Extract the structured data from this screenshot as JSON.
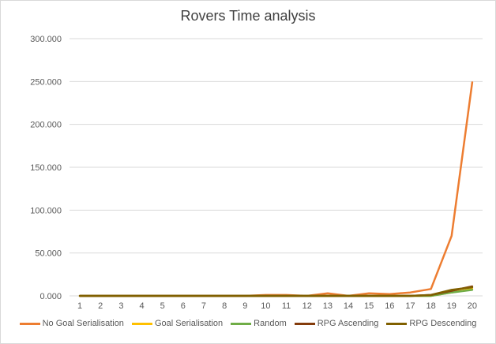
{
  "chart_data": {
    "type": "line",
    "title": "Rovers Time analysis",
    "xlabel": "",
    "ylabel": "",
    "categories": [
      "1",
      "2",
      "3",
      "4",
      "5",
      "6",
      "7",
      "8",
      "9",
      "10",
      "11",
      "12",
      "13",
      "14",
      "15",
      "16",
      "17",
      "18",
      "19",
      "20"
    ],
    "y_ticks": [
      "0.000",
      "50.000",
      "100.000",
      "150.000",
      "200.000",
      "250.000",
      "300.000"
    ],
    "ylim": [
      0,
      300000
    ],
    "grid": true,
    "legend_position": "bottom",
    "series": [
      {
        "name": "No Goal Serialisation",
        "color": "#ED7D31",
        "values": [
          0,
          0,
          0,
          0,
          0,
          0,
          0,
          0,
          0,
          1000,
          1000,
          0,
          3000,
          0,
          3000,
          2000,
          4000,
          8000,
          70000,
          249000
        ]
      },
      {
        "name": "Goal Serialisation",
        "color": "#FFC000",
        "values": [
          0,
          0,
          0,
          0,
          0,
          0,
          0,
          0,
          0,
          0,
          0,
          0,
          0,
          0,
          0,
          0,
          0,
          0,
          4000,
          8000
        ]
      },
      {
        "name": "Random",
        "color": "#70AD47",
        "values": [
          0,
          0,
          0,
          0,
          0,
          0,
          0,
          0,
          0,
          0,
          0,
          0,
          0,
          0,
          0,
          0,
          0,
          0,
          4000,
          7000
        ]
      },
      {
        "name": "RPG Ascending",
        "color": "#843C0C",
        "values": [
          0,
          0,
          0,
          0,
          0,
          0,
          0,
          0,
          0,
          0,
          0,
          0,
          0,
          0,
          0,
          0,
          0,
          1000,
          6000,
          11000
        ]
      },
      {
        "name": "RPG Descending",
        "color": "#806000",
        "values": [
          0,
          0,
          0,
          0,
          0,
          0,
          0,
          0,
          0,
          0,
          0,
          0,
          0,
          0,
          0,
          0,
          0,
          1000,
          7000,
          10000
        ]
      }
    ]
  }
}
